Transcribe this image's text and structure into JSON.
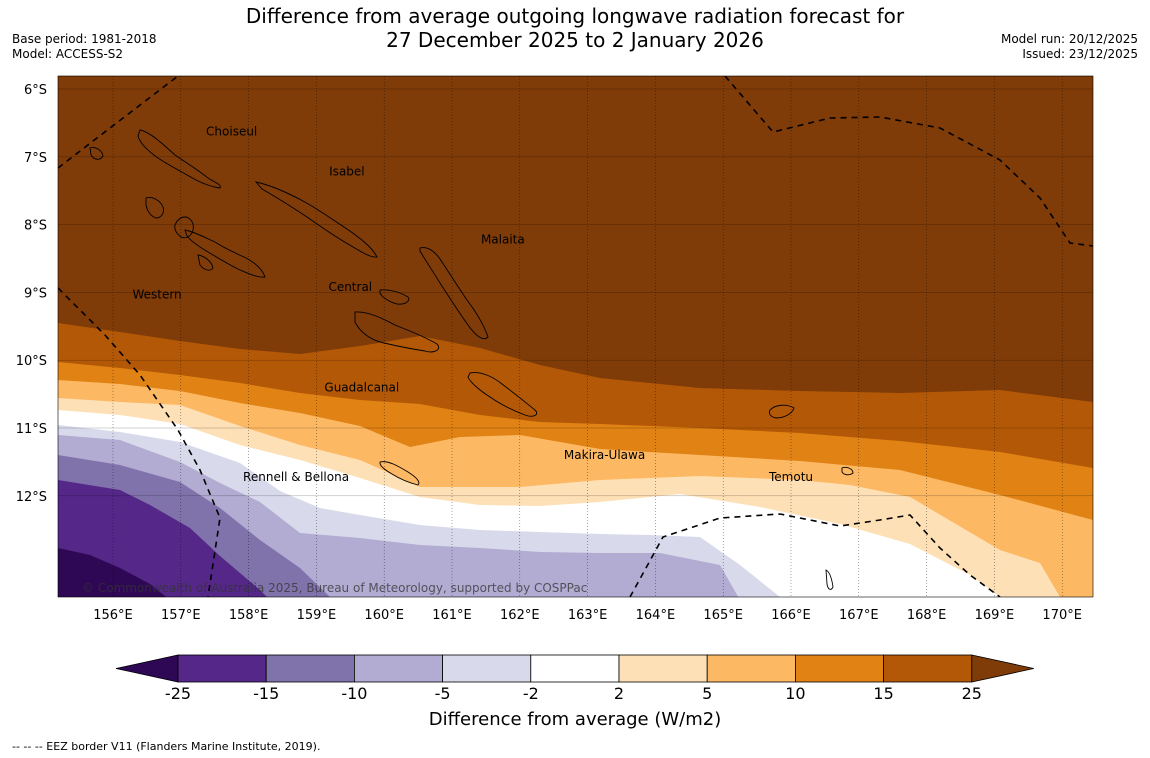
{
  "header": {
    "title_line1": "Difference from average outgoing longwave radiation forecast for",
    "title_line2": "27 December 2025 to 2 January 2026",
    "base_period": "Base period: 1981-2018",
    "model": "Model: ACCESS-S2",
    "model_run": "Model run: 20/12/2025",
    "issued": "Issued: 23/12/2025"
  },
  "map": {
    "lat_labels": [
      "6°S",
      "7°S",
      "8°S",
      "9°S",
      "10°S",
      "11°S",
      "12°S"
    ],
    "lon_labels": [
      "156°E",
      "157°E",
      "158°E",
      "159°E",
      "160°E",
      "161°E",
      "162°E",
      "163°E",
      "164°E",
      "165°E",
      "166°E",
      "167°E",
      "168°E",
      "169°E",
      "170°E"
    ],
    "regions": [
      {
        "name": "Choiseul",
        "lon": 157.75,
        "lat": -6.63
      },
      {
        "name": "Isabel",
        "lon": 159.45,
        "lat": -7.22
      },
      {
        "name": "Malaita",
        "lon": 161.75,
        "lat": -8.22
      },
      {
        "name": "Central",
        "lon": 159.5,
        "lat": -8.92
      },
      {
        "name": "Western",
        "lon": 156.65,
        "lat": -9.03
      },
      {
        "name": "Guadalcanal",
        "lon": 159.67,
        "lat": -10.4
      },
      {
        "name": "Makira-Ulawa",
        "lon": 163.25,
        "lat": -11.4
      },
      {
        "name": "Rennell & Bellona",
        "lon": 158.7,
        "lat": -11.72
      },
      {
        "name": "Temotu",
        "lon": 166.0,
        "lat": -11.72
      }
    ],
    "copyright": "© Commonwealth of Australia 2025, Bureau of Meteorology, supported by COSPPac"
  },
  "colorbar": {
    "ticks": [
      "-25",
      "-15",
      "-10",
      "-5",
      "-2",
      "2",
      "5",
      "10",
      "15",
      "25"
    ],
    "title": "Difference from average (W/m2)",
    "colors": [
      "#2e0854",
      "#542788",
      "#8073ac",
      "#b2abd2",
      "#d8daeb",
      "#ffffff",
      "#fee0b6",
      "#fdb863",
      "#e08214",
      "#b35806",
      "#7f3b08"
    ]
  },
  "footnote": "--  --  -- EEZ border V11 (Flanders Marine Institute, 2019)."
}
